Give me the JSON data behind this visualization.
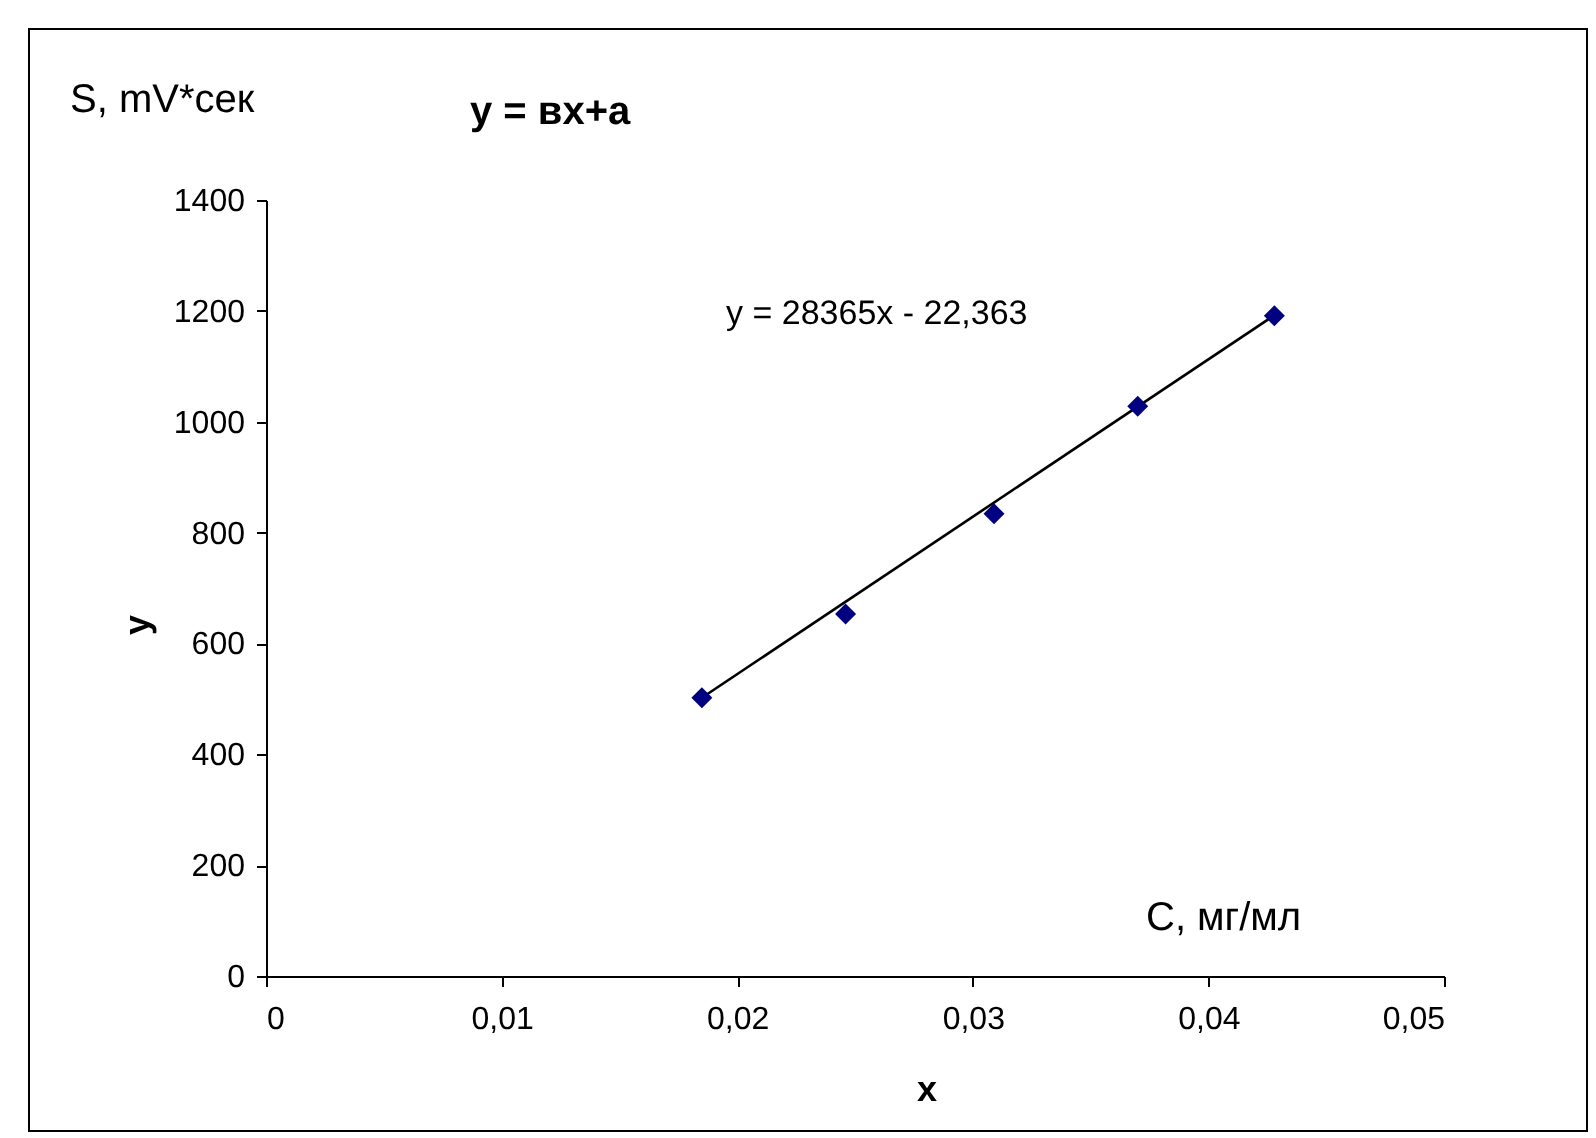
{
  "chart_data": {
    "type": "scatter",
    "title": "y = вx+a",
    "xlabel": "x",
    "ylabel": "y",
    "annotations": [
      "S, mV*сек",
      "C, мг/мл",
      "y = 28365x - 22,363"
    ],
    "series": [
      {
        "color": "#000080",
        "marker": "diamond",
        "x": [
          0.0185,
          0.0246,
          0.0309,
          0.037,
          0.0428
        ],
        "values": [
          502,
          653,
          834,
          1028,
          1191
        ]
      },
      {
        "type": "line",
        "color": "#000000",
        "x": [
          0.0185,
          0.0428
        ],
        "values": [
          502,
          1192
        ]
      }
    ],
    "xlim": [
      0,
      0.05
    ],
    "xticks": [
      0,
      {
        "value": 0.01,
        "label": "0,01"
      },
      {
        "value": 0.02,
        "label": "0,02"
      },
      {
        "value": 0.03,
        "label": "0,03"
      },
      {
        "value": 0.04,
        "label": "0,04"
      },
      {
        "value": 0.05,
        "label": "0,05"
      }
    ],
    "ylim": [
      0,
      1400
    ],
    "yticks": [
      0,
      200,
      400,
      600,
      800,
      1000,
      1200,
      1400
    ],
    "grid": false
  }
}
